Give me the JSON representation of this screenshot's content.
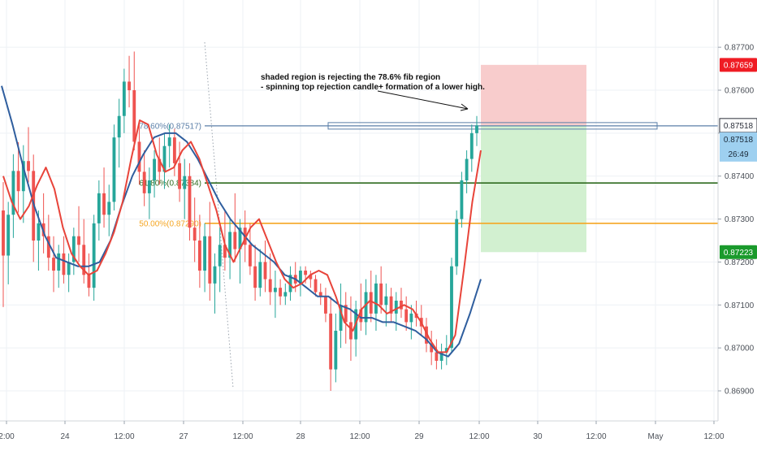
{
  "chart_data": {
    "type": "candlestick",
    "x_ticks": [
      "2:00",
      "24",
      "12:00",
      "27",
      "12:00",
      "28",
      "12:00",
      "29",
      "12:00",
      "30",
      "12:00",
      "May",
      "12:00"
    ],
    "y_ticks": [
      0.869,
      0.87,
      0.871,
      0.872,
      0.873,
      0.874,
      0.875,
      0.876,
      0.877
    ],
    "y_tick_labels": [
      "0.86900",
      "0.87000",
      "0.87100",
      "0.87200",
      "0.87300",
      "0.87400",
      "0.87500",
      "0.87600",
      "0.87700"
    ],
    "ylim": [
      0.8683,
      0.8781
    ],
    "colors": {
      "up": "#26a69a",
      "down": "#ef5350",
      "ema_fast": "#e8443a",
      "ema_slow": "#2f5e9e",
      "fib_786": "#5b7fa8",
      "fib_618": "#2e6b1e",
      "fib_500": "#f5a623",
      "stop_zone": "#f7c6c6",
      "target_zone": "#cdeecb",
      "badge_stop": "#ef1c24",
      "badge_price": "#9ed0f0",
      "badge_target": "#1a9a2c"
    },
    "fib_levels": [
      {
        "label": "78.60%(0.87517)",
        "value": 0.87517
      },
      {
        "label": "61.80%(0.87384)",
        "value": 0.87384
      },
      {
        "label": "50.00%(0.87290)",
        "value": 0.8729
      }
    ],
    "annotation": {
      "line1": "shaded region is rejecting the 78.6% fib region",
      "line2": "- spinning top rejection candle+ formation of a lower high."
    },
    "position": {
      "entry": 0.87518,
      "stop": 0.87659,
      "target": 0.87223
    },
    "badges": {
      "stop": "0.87659",
      "entry": "0.87518",
      "price": "0.87518",
      "countdown": "26:49",
      "target": "0.87223"
    },
    "ema_fast": [
      0.874,
      0.8734,
      0.873,
      0.8733,
      0.8738,
      0.8742,
      0.8737,
      0.8728,
      0.8722,
      0.8719,
      0.8717,
      0.8718,
      0.8722,
      0.8727,
      0.8734,
      0.8744,
      0.8753,
      0.8752,
      0.8745,
      0.8741,
      0.8742,
      0.8746,
      0.8748,
      0.8744,
      0.8738,
      0.8732,
      0.8724,
      0.872,
      0.8724,
      0.8728,
      0.873,
      0.8725,
      0.872,
      0.8716,
      0.8714,
      0.8715,
      0.8717,
      0.8718,
      0.8717,
      0.8712,
      0.8706,
      0.8704,
      0.8709,
      0.8711,
      0.871,
      0.8708,
      0.8709,
      0.871,
      0.8709,
      0.8706,
      0.8702,
      0.8699,
      0.8699,
      0.8703,
      0.8718,
      0.8734,
      0.8746
    ],
    "ema_slow": [
      0.8761,
      0.8752,
      0.8742,
      0.8733,
      0.8726,
      0.8721,
      0.872,
      0.8719,
      0.8719,
      0.872,
      0.8725,
      0.8733,
      0.874,
      0.8745,
      0.8749,
      0.875,
      0.875,
      0.8748,
      0.8744,
      0.8739,
      0.8734,
      0.873,
      0.8727,
      0.8724,
      0.8722,
      0.872,
      0.8717,
      0.8716,
      0.8714,
      0.8712,
      0.8712,
      0.871,
      0.8709,
      0.8707,
      0.8707,
      0.8706,
      0.8706,
      0.8705,
      0.8704,
      0.8702,
      0.8699,
      0.8698,
      0.8701,
      0.8708,
      0.8716
    ],
    "candles": [
      {
        "o": 0.8732,
        "h": 0.87386,
        "l": 0.87095,
        "c": 0.87215
      },
      {
        "o": 0.87215,
        "h": 0.8734,
        "l": 0.87148,
        "c": 0.8731
      },
      {
        "o": 0.8731,
        "h": 0.87451,
        "l": 0.87256,
        "c": 0.87412
      },
      {
        "o": 0.87412,
        "h": 0.87479,
        "l": 0.87315,
        "c": 0.87365
      },
      {
        "o": 0.87365,
        "h": 0.87472,
        "l": 0.87291,
        "c": 0.87435
      },
      {
        "o": 0.87435,
        "h": 0.87514,
        "l": 0.87385,
        "c": 0.87412
      },
      {
        "o": 0.87412,
        "h": 0.8745,
        "l": 0.872,
        "c": 0.8725
      },
      {
        "o": 0.8725,
        "h": 0.8732,
        "l": 0.8718,
        "c": 0.8729
      },
      {
        "o": 0.8729,
        "h": 0.8736,
        "l": 0.8722,
        "c": 0.8726
      },
      {
        "o": 0.8726,
        "h": 0.8731,
        "l": 0.8718,
        "c": 0.8721
      },
      {
        "o": 0.8721,
        "h": 0.8726,
        "l": 0.8713,
        "c": 0.8718
      },
      {
        "o": 0.8718,
        "h": 0.8724,
        "l": 0.8714,
        "c": 0.8722
      },
      {
        "o": 0.8722,
        "h": 0.8726,
        "l": 0.8715,
        "c": 0.8717
      },
      {
        "o": 0.8717,
        "h": 0.8722,
        "l": 0.8713,
        "c": 0.872
      },
      {
        "o": 0.872,
        "h": 0.8728,
        "l": 0.8717,
        "c": 0.8726
      },
      {
        "o": 0.8726,
        "h": 0.8733,
        "l": 0.872,
        "c": 0.8724
      },
      {
        "o": 0.8724,
        "h": 0.873,
        "l": 0.8715,
        "c": 0.8717
      },
      {
        "o": 0.8717,
        "h": 0.8722,
        "l": 0.8712,
        "c": 0.8714
      },
      {
        "o": 0.8714,
        "h": 0.8731,
        "l": 0.8711,
        "c": 0.8729
      },
      {
        "o": 0.8729,
        "h": 0.8739,
        "l": 0.8725,
        "c": 0.8736
      },
      {
        "o": 0.8736,
        "h": 0.8742,
        "l": 0.8728,
        "c": 0.8731
      },
      {
        "o": 0.8731,
        "h": 0.8738,
        "l": 0.8726,
        "c": 0.8734
      },
      {
        "o": 0.8734,
        "h": 0.8752,
        "l": 0.8732,
        "c": 0.8749
      },
      {
        "o": 0.8749,
        "h": 0.8758,
        "l": 0.8742,
        "c": 0.8754
      },
      {
        "o": 0.8754,
        "h": 0.8765,
        "l": 0.875,
        "c": 0.8762
      },
      {
        "o": 0.8762,
        "h": 0.8768,
        "l": 0.8756,
        "c": 0.876
      },
      {
        "o": 0.876,
        "h": 0.8769,
        "l": 0.8746,
        "c": 0.8748
      },
      {
        "o": 0.8748,
        "h": 0.8753,
        "l": 0.8738,
        "c": 0.8741
      },
      {
        "o": 0.8741,
        "h": 0.8746,
        "l": 0.8733,
        "c": 0.8736
      },
      {
        "o": 0.8736,
        "h": 0.8742,
        "l": 0.873,
        "c": 0.8739
      },
      {
        "o": 0.8739,
        "h": 0.8746,
        "l": 0.8735,
        "c": 0.8744
      },
      {
        "o": 0.8744,
        "h": 0.8749,
        "l": 0.8738,
        "c": 0.8741
      },
      {
        "o": 0.8741,
        "h": 0.875,
        "l": 0.8737,
        "c": 0.8747
      },
      {
        "o": 0.8747,
        "h": 0.8752,
        "l": 0.8742,
        "c": 0.8749
      },
      {
        "o": 0.8749,
        "h": 0.8751,
        "l": 0.874,
        "c": 0.8743
      },
      {
        "o": 0.8743,
        "h": 0.8748,
        "l": 0.8734,
        "c": 0.8737
      },
      {
        "o": 0.8737,
        "h": 0.8744,
        "l": 0.873,
        "c": 0.874
      },
      {
        "o": 0.874,
        "h": 0.8743,
        "l": 0.8725,
        "c": 0.8728
      },
      {
        "o": 0.8728,
        "h": 0.8735,
        "l": 0.872,
        "c": 0.8725
      },
      {
        "o": 0.8725,
        "h": 0.8731,
        "l": 0.8714,
        "c": 0.8718
      },
      {
        "o": 0.8718,
        "h": 0.8729,
        "l": 0.8713,
        "c": 0.8726
      },
      {
        "o": 0.8726,
        "h": 0.8734,
        "l": 0.8711,
        "c": 0.8715
      },
      {
        "o": 0.8715,
        "h": 0.8722,
        "l": 0.8708,
        "c": 0.8719
      },
      {
        "o": 0.8719,
        "h": 0.8728,
        "l": 0.8713,
        "c": 0.8724
      },
      {
        "o": 0.8724,
        "h": 0.8732,
        "l": 0.8718,
        "c": 0.8721
      },
      {
        "o": 0.8721,
        "h": 0.873,
        "l": 0.8716,
        "c": 0.8727
      },
      {
        "o": 0.8727,
        "h": 0.8736,
        "l": 0.872,
        "c": 0.8723
      },
      {
        "o": 0.8723,
        "h": 0.873,
        "l": 0.8715,
        "c": 0.8728
      },
      {
        "o": 0.8728,
        "h": 0.8732,
        "l": 0.872,
        "c": 0.8724
      },
      {
        "o": 0.8724,
        "h": 0.8729,
        "l": 0.8717,
        "c": 0.8719
      },
      {
        "o": 0.8719,
        "h": 0.8724,
        "l": 0.8711,
        "c": 0.8714
      },
      {
        "o": 0.8714,
        "h": 0.8723,
        "l": 0.8712,
        "c": 0.872
      },
      {
        "o": 0.872,
        "h": 0.8725,
        "l": 0.8713,
        "c": 0.8716
      },
      {
        "o": 0.8716,
        "h": 0.8722,
        "l": 0.871,
        "c": 0.8713
      },
      {
        "o": 0.8713,
        "h": 0.8718,
        "l": 0.8707,
        "c": 0.8714
      },
      {
        "o": 0.8714,
        "h": 0.8716,
        "l": 0.871,
        "c": 0.8712
      },
      {
        "o": 0.8712,
        "h": 0.8715,
        "l": 0.871,
        "c": 0.8713
      },
      {
        "o": 0.8713,
        "h": 0.8719,
        "l": 0.8711,
        "c": 0.8717
      },
      {
        "o": 0.8717,
        "h": 0.872,
        "l": 0.8713,
        "c": 0.8715
      },
      {
        "o": 0.8715,
        "h": 0.8719,
        "l": 0.8712,
        "c": 0.8718
      },
      {
        "o": 0.8718,
        "h": 0.8719,
        "l": 0.8715,
        "c": 0.8717
      },
      {
        "o": 0.8717,
        "h": 0.8718,
        "l": 0.8714,
        "c": 0.8716
      },
      {
        "o": 0.8716,
        "h": 0.8717,
        "l": 0.8712,
        "c": 0.8713
      },
      {
        "o": 0.8713,
        "h": 0.8715,
        "l": 0.871,
        "c": 0.8712
      },
      {
        "o": 0.8712,
        "h": 0.8714,
        "l": 0.8706,
        "c": 0.8708
      },
      {
        "o": 0.8708,
        "h": 0.8712,
        "l": 0.869,
        "c": 0.8695
      },
      {
        "o": 0.8695,
        "h": 0.8708,
        "l": 0.8692,
        "c": 0.8704
      },
      {
        "o": 0.8704,
        "h": 0.8715,
        "l": 0.87,
        "c": 0.871
      },
      {
        "o": 0.871,
        "h": 0.8713,
        "l": 0.8701,
        "c": 0.8706
      },
      {
        "o": 0.8706,
        "h": 0.8712,
        "l": 0.8697,
        "c": 0.8702
      },
      {
        "o": 0.8702,
        "h": 0.8711,
        "l": 0.8698,
        "c": 0.8709
      },
      {
        "o": 0.8709,
        "h": 0.8715,
        "l": 0.8704,
        "c": 0.8706
      },
      {
        "o": 0.8706,
        "h": 0.8716,
        "l": 0.8703,
        "c": 0.8713
      },
      {
        "o": 0.8713,
        "h": 0.8718,
        "l": 0.8706,
        "c": 0.8708
      },
      {
        "o": 0.8708,
        "h": 0.8717,
        "l": 0.8704,
        "c": 0.8715
      },
      {
        "o": 0.8715,
        "h": 0.8719,
        "l": 0.8708,
        "c": 0.871
      },
      {
        "o": 0.871,
        "h": 0.8715,
        "l": 0.8705,
        "c": 0.8712
      },
      {
        "o": 0.8712,
        "h": 0.8714,
        "l": 0.8706,
        "c": 0.8708
      },
      {
        "o": 0.8708,
        "h": 0.8713,
        "l": 0.8704,
        "c": 0.8711
      },
      {
        "o": 0.8711,
        "h": 0.8714,
        "l": 0.8707,
        "c": 0.8709
      },
      {
        "o": 0.8709,
        "h": 0.8712,
        "l": 0.8704,
        "c": 0.8706
      },
      {
        "o": 0.8706,
        "h": 0.871,
        "l": 0.8702,
        "c": 0.8708
      },
      {
        "o": 0.8708,
        "h": 0.8711,
        "l": 0.8705,
        "c": 0.8707
      },
      {
        "o": 0.8707,
        "h": 0.871,
        "l": 0.8703,
        "c": 0.8705
      },
      {
        "o": 0.8705,
        "h": 0.8707,
        "l": 0.8699,
        "c": 0.8701
      },
      {
        "o": 0.8701,
        "h": 0.8704,
        "l": 0.8696,
        "c": 0.8699
      },
      {
        "o": 0.8699,
        "h": 0.8702,
        "l": 0.8695,
        "c": 0.8697
      },
      {
        "o": 0.8697,
        "h": 0.8701,
        "l": 0.8695,
        "c": 0.8699
      },
      {
        "o": 0.8699,
        "h": 0.8703,
        "l": 0.8696,
        "c": 0.87
      },
      {
        "o": 0.87,
        "h": 0.8721,
        "l": 0.8699,
        "c": 0.8719
      },
      {
        "o": 0.8719,
        "h": 0.8732,
        "l": 0.8717,
        "c": 0.873
      },
      {
        "o": 0.873,
        "h": 0.8741,
        "l": 0.8728,
        "c": 0.8739
      },
      {
        "o": 0.8739,
        "h": 0.8746,
        "l": 0.8736,
        "c": 0.8744
      },
      {
        "o": 0.8744,
        "h": 0.8752,
        "l": 0.8741,
        "c": 0.875
      },
      {
        "o": 0.875,
        "h": 0.8754,
        "l": 0.8747,
        "c": 0.87518
      }
    ]
  },
  "axis": {
    "y_labels": [
      "0.87700",
      "0.87600",
      "0.87500",
      "0.87400",
      "0.87300",
      "0.87200",
      "0.87100",
      "0.87000",
      "0.86900"
    ]
  }
}
